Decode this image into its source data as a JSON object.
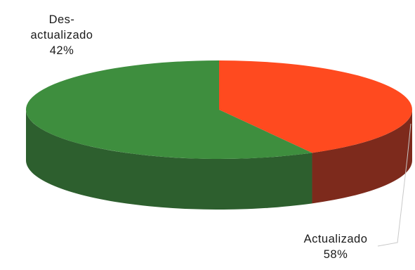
{
  "chart_data": {
    "type": "pie",
    "title": "",
    "legend": "none",
    "slices": [
      {
        "label_lines": [
          "Des-",
          "actualizado"
        ],
        "value_label": "42%",
        "value": 42,
        "color": "#ff4a1f",
        "side_color": "#7d2a1c"
      },
      {
        "label_lines": [
          "Actualizado"
        ],
        "value_label": "58%",
        "value": 58,
        "color": "#3e8e3e",
        "side_color": "#2d5f2e"
      }
    ]
  }
}
